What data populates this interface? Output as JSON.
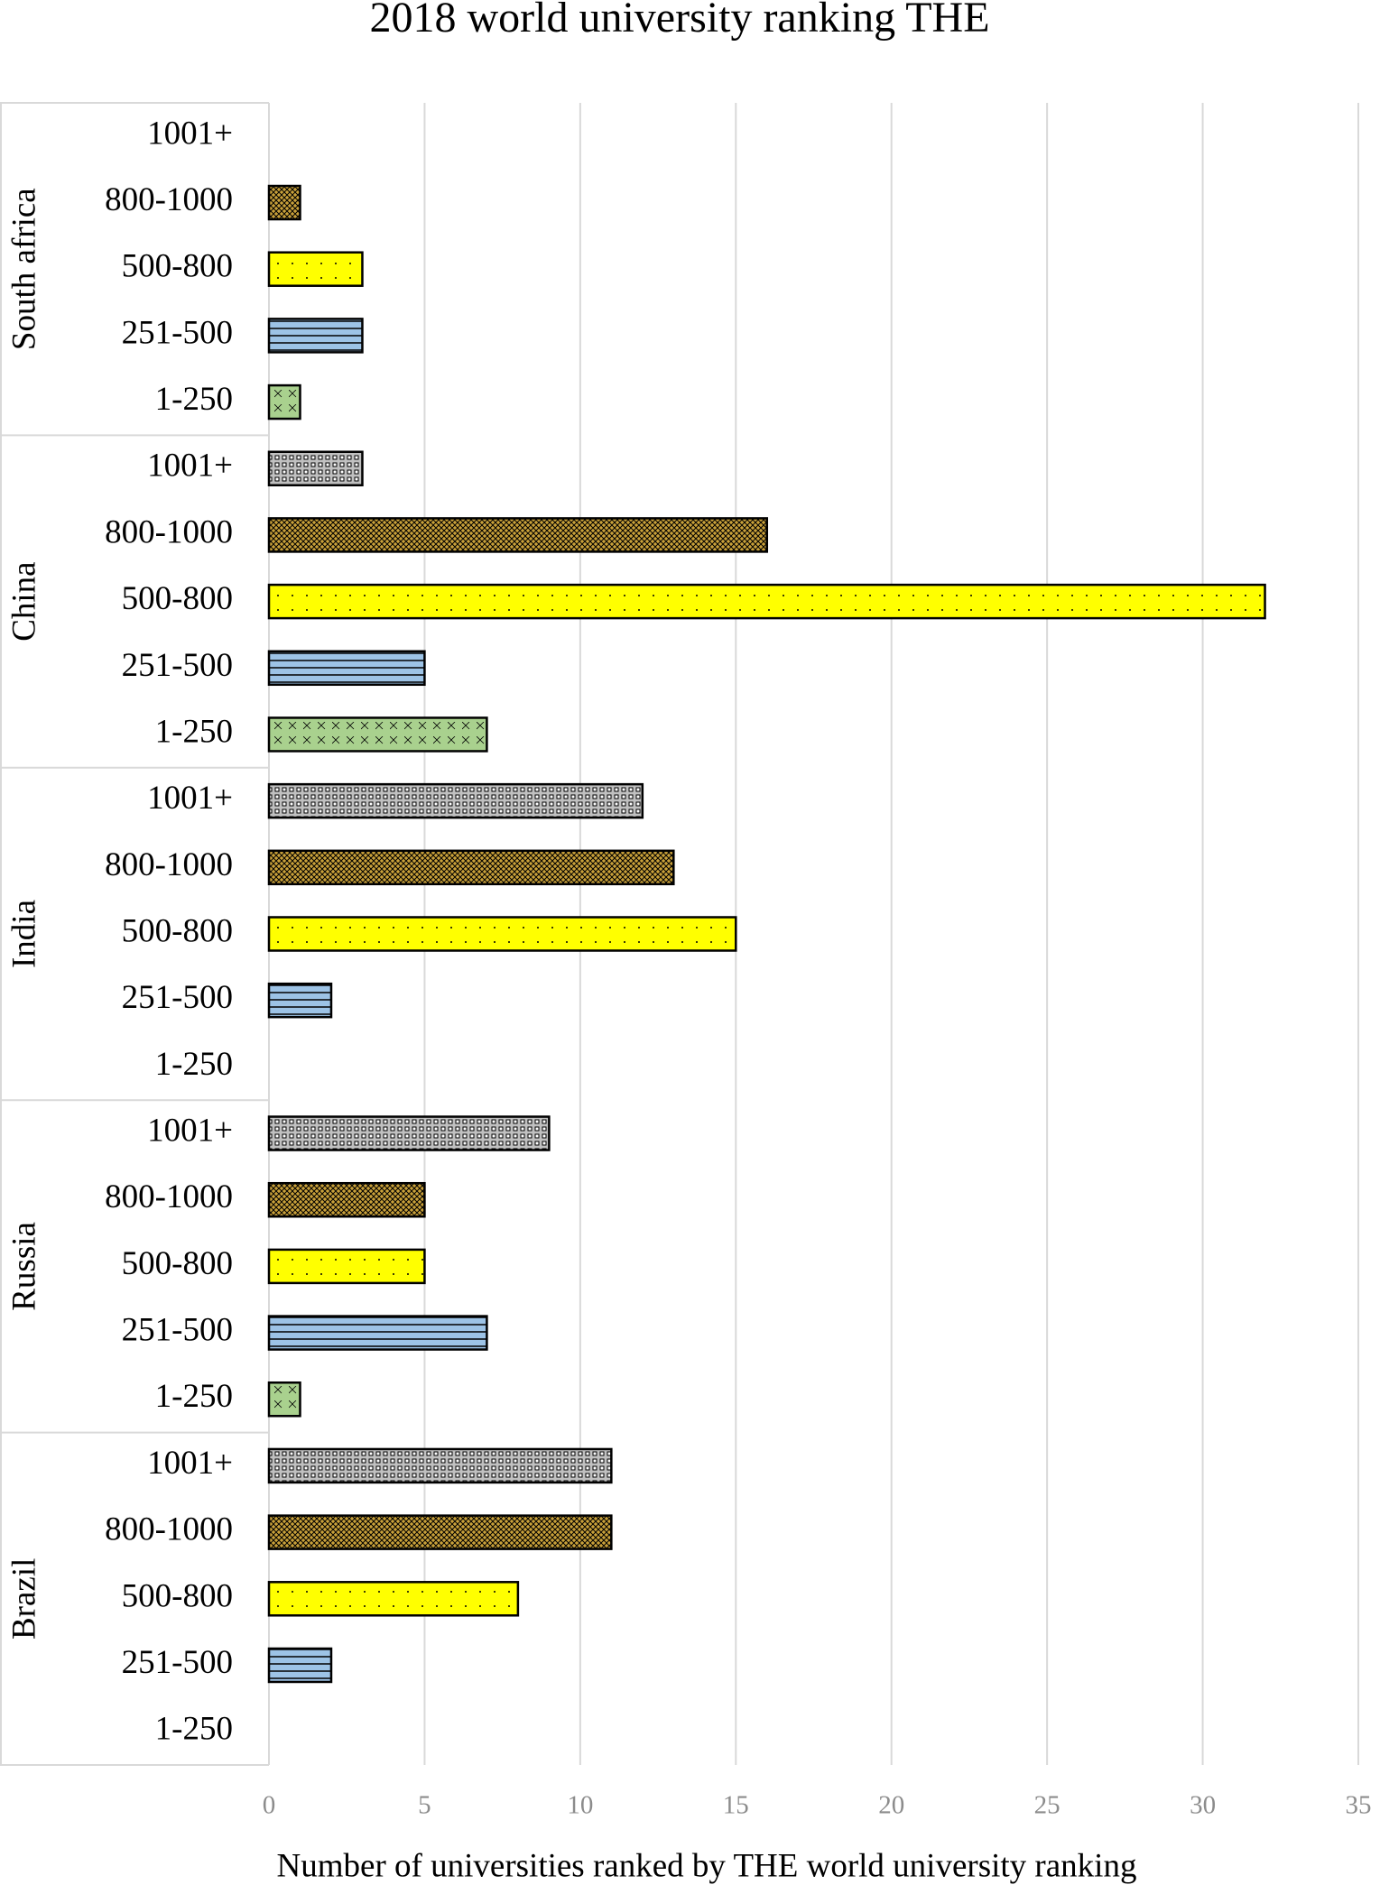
{
  "chart_data": {
    "type": "bar",
    "orientation": "horizontal",
    "title": "2018 world university ranking THE",
    "x_label": "Number of universities ranked by THE world university ranking",
    "categories": [
      "1001+",
      "800-1000",
      "500-800",
      "251-500",
      "1-250"
    ],
    "colors": [
      "#c0c0c0",
      "#c9a13a",
      "#ffff00",
      "#9dc3e6",
      "#a9d18e"
    ],
    "groups": [
      {
        "name": "South africa",
        "values": [
          null,
          1,
          3,
          3,
          1
        ]
      },
      {
        "name": "China",
        "values": [
          3,
          16,
          32,
          5,
          7
        ]
      },
      {
        "name": "India",
        "values": [
          12,
          13,
          15,
          2,
          null
        ]
      },
      {
        "name": "Russia",
        "values": [
          9,
          5,
          5,
          7,
          1
        ]
      },
      {
        "name": "Brazil",
        "values": [
          11,
          11,
          8,
          2,
          null
        ]
      }
    ],
    "xlim": [
      0,
      35
    ],
    "xticks": [
      0,
      5,
      10,
      15,
      20,
      25,
      30,
      35
    ],
    "grid": true
  }
}
